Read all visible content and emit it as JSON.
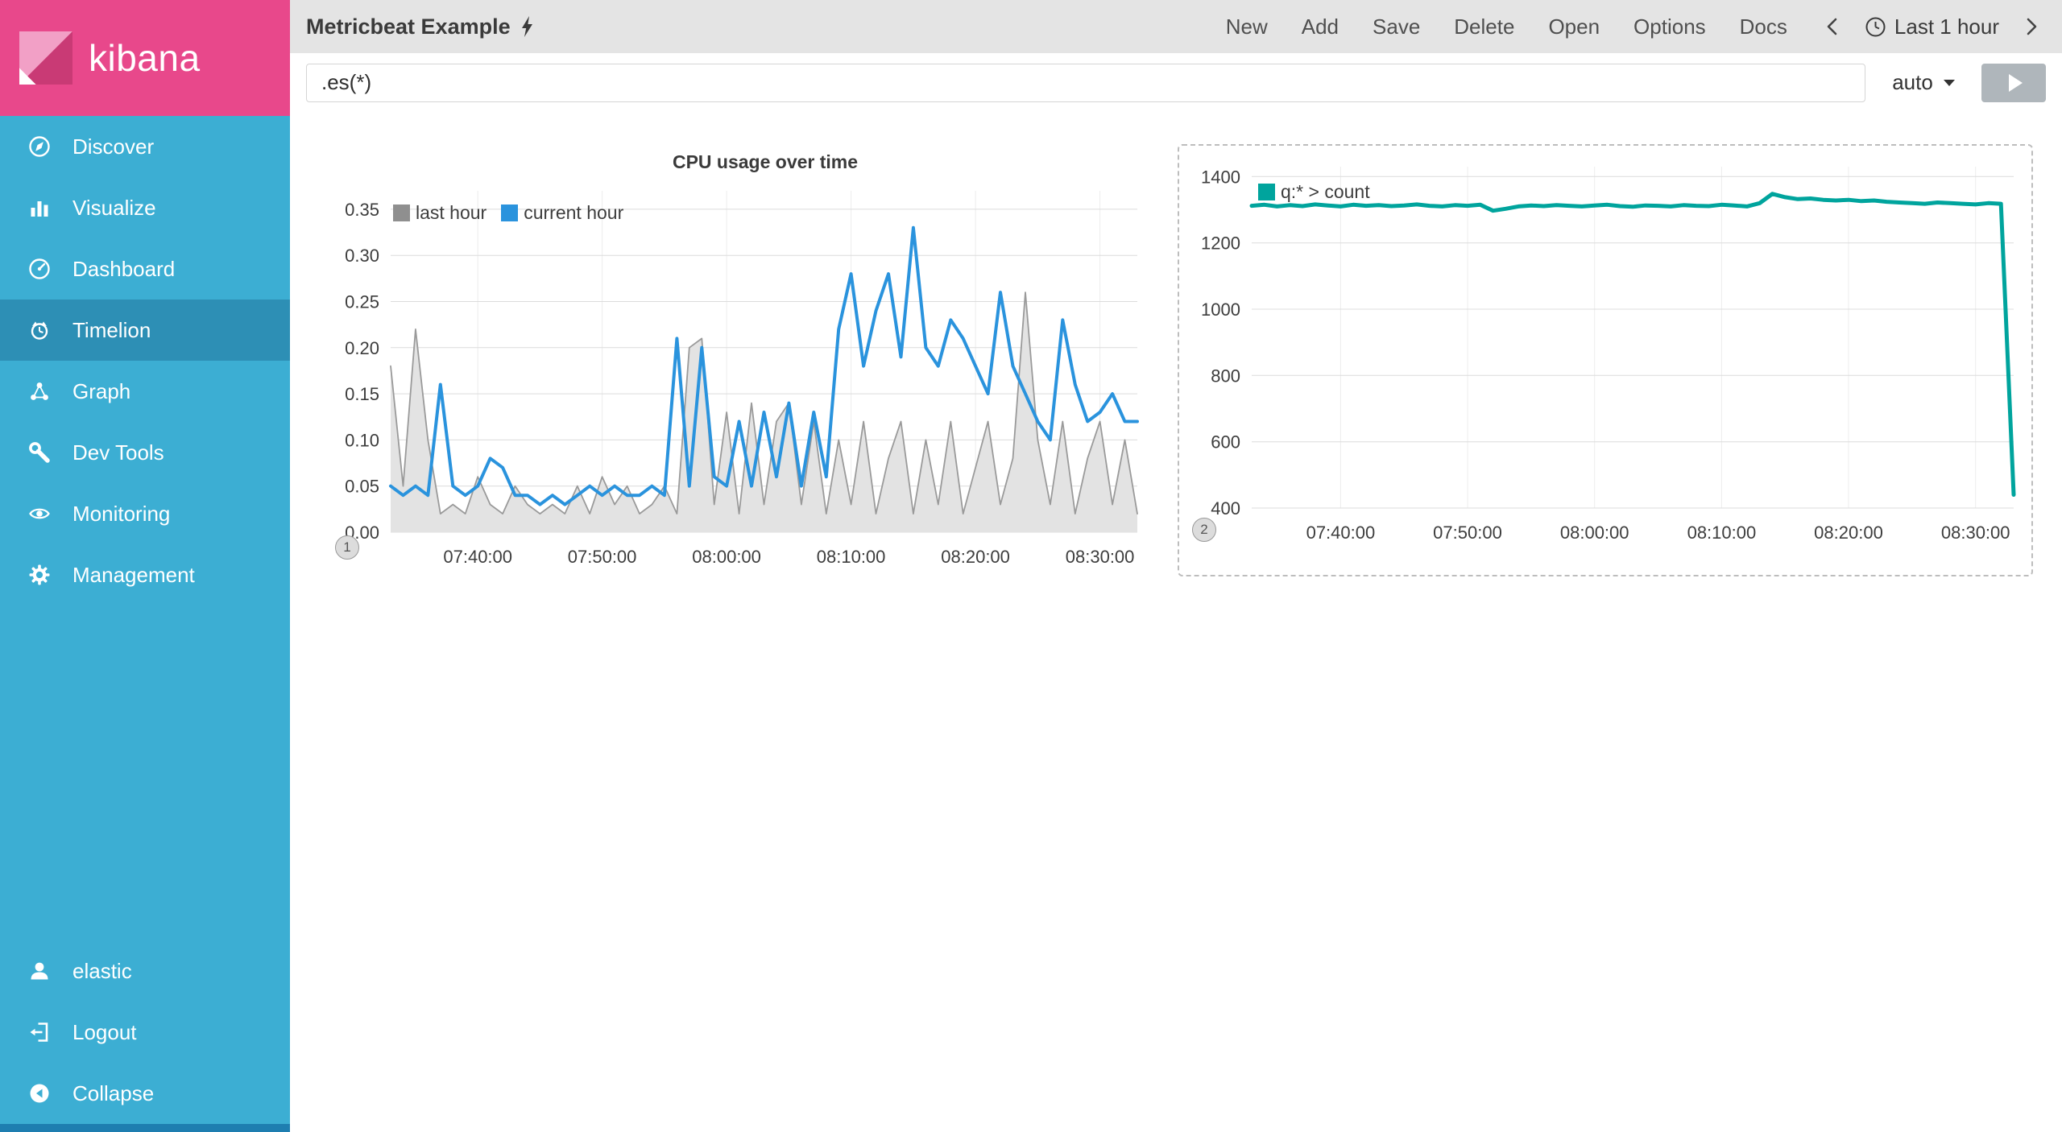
{
  "colors": {
    "sidebar": "#3CAED3",
    "sidebar_selected": "#2D8FB5",
    "logo_pink": "#E8488B",
    "topbar_bg": "#E4E4E4",
    "run_button": "#AFB6BB",
    "series_blue": "#2A93DD",
    "series_gray": "#8F8F8F",
    "series_teal": "#00A49D"
  },
  "sidebar": {
    "logo_text": "kibana",
    "items": [
      {
        "label": "Discover",
        "icon": "compass-icon",
        "selected": false
      },
      {
        "label": "Visualize",
        "icon": "bar-chart-icon",
        "selected": false
      },
      {
        "label": "Dashboard",
        "icon": "gauge-icon",
        "selected": false
      },
      {
        "label": "Timelion",
        "icon": "timelion-icon",
        "selected": true
      },
      {
        "label": "Graph",
        "icon": "graph-icon",
        "selected": false
      },
      {
        "label": "Dev Tools",
        "icon": "wrench-icon",
        "selected": false
      },
      {
        "label": "Monitoring",
        "icon": "eye-icon",
        "selected": false
      },
      {
        "label": "Management",
        "icon": "gear-icon",
        "selected": false
      }
    ],
    "bottom_items": [
      {
        "label": "elastic",
        "icon": "user-icon"
      },
      {
        "label": "Logout",
        "icon": "logout-icon"
      },
      {
        "label": "Collapse",
        "icon": "collapse-icon"
      }
    ]
  },
  "topbar": {
    "title": "Metricbeat Example",
    "menu": [
      "New",
      "Add",
      "Save",
      "Delete",
      "Open",
      "Options",
      "Docs"
    ],
    "timepicker": {
      "label": "Last 1 hour"
    }
  },
  "querybar": {
    "value": ".es(*)",
    "interval": "auto"
  },
  "chart_data": [
    {
      "type": "line",
      "title": "CPU usage over time",
      "panel_number": "1",
      "xlabel": "",
      "ylabel": "",
      "ylim": [
        0,
        0.37
      ],
      "grid": true,
      "legend_position": "top-left",
      "y_tick_values": [
        0,
        0.05,
        0.1,
        0.15,
        0.2,
        0.25,
        0.3,
        0.35
      ],
      "y_tick_labels": [
        "0.00",
        "0.05",
        "0.10",
        "0.15",
        "0.20",
        "0.25",
        "0.30",
        "0.35"
      ],
      "x_tick_indices": [
        7,
        17,
        27,
        37,
        47,
        57
      ],
      "x_tick_labels": [
        "07:40:00",
        "07:50:00",
        "08:00:00",
        "08:10:00",
        "08:20:00",
        "08:30:00"
      ],
      "x_range": [
        "07:33:00",
        "08:33:00"
      ],
      "series": [
        {
          "name": "last hour",
          "render": "area",
          "color": "#9A9A9A",
          "legend_color": "#8F8F8F",
          "fill": "#E3E3E3",
          "stroke_width": 1.8,
          "values": [
            0.18,
            0.05,
            0.22,
            0.1,
            0.02,
            0.03,
            0.02,
            0.06,
            0.03,
            0.02,
            0.05,
            0.03,
            0.02,
            0.03,
            0.02,
            0.05,
            0.02,
            0.06,
            0.03,
            0.05,
            0.02,
            0.03,
            0.05,
            0.02,
            0.2,
            0.21,
            0.03,
            0.13,
            0.02,
            0.14,
            0.03,
            0.12,
            0.14,
            0.03,
            0.12,
            0.02,
            0.1,
            0.03,
            0.12,
            0.02,
            0.08,
            0.12,
            0.02,
            0.1,
            0.03,
            0.12,
            0.02,
            0.07,
            0.12,
            0.03,
            0.08,
            0.26,
            0.1,
            0.03,
            0.12,
            0.02,
            0.08,
            0.12,
            0.03,
            0.1,
            0.02
          ]
        },
        {
          "name": "current hour",
          "render": "line",
          "color": "#2A93DD",
          "legend_color": "#2A93DD",
          "stroke_width": 4,
          "values": [
            0.05,
            0.04,
            0.05,
            0.04,
            0.16,
            0.05,
            0.04,
            0.05,
            0.08,
            0.07,
            0.04,
            0.04,
            0.03,
            0.04,
            0.03,
            0.04,
            0.05,
            0.04,
            0.05,
            0.04,
            0.04,
            0.05,
            0.04,
            0.21,
            0.05,
            0.2,
            0.06,
            0.05,
            0.12,
            0.05,
            0.13,
            0.06,
            0.14,
            0.05,
            0.13,
            0.06,
            0.22,
            0.28,
            0.18,
            0.24,
            0.28,
            0.19,
            0.33,
            0.2,
            0.18,
            0.23,
            0.21,
            0.18,
            0.15,
            0.26,
            0.18,
            0.15,
            0.12,
            0.1,
            0.23,
            0.16,
            0.12,
            0.13,
            0.15,
            0.12,
            0.12
          ]
        }
      ]
    },
    {
      "type": "line",
      "title": "",
      "panel_number": "2",
      "selected": true,
      "xlabel": "",
      "ylabel": "",
      "ylim": [
        400,
        1430
      ],
      "grid": true,
      "legend_position": "top-left",
      "y_tick_values": [
        400,
        600,
        800,
        1000,
        1200,
        1400
      ],
      "y_tick_labels": [
        "400",
        "600",
        "800",
        "1000",
        "1200",
        "1400"
      ],
      "x_tick_indices": [
        7,
        17,
        27,
        37,
        47,
        57
      ],
      "x_tick_labels": [
        "07:40:00",
        "07:50:00",
        "08:00:00",
        "08:10:00",
        "08:20:00",
        "08:30:00"
      ],
      "x_range": [
        "07:33:00",
        "08:33:00"
      ],
      "series": [
        {
          "name": "q:* > count",
          "render": "line",
          "color": "#00A49D",
          "legend_color": "#00A49D",
          "stroke_width": 5,
          "values": [
            1312,
            1315,
            1310,
            1314,
            1311,
            1316,
            1313,
            1310,
            1315,
            1312,
            1314,
            1311,
            1313,
            1316,
            1312,
            1310,
            1314,
            1312,
            1315,
            1297,
            1303,
            1310,
            1313,
            1311,
            1314,
            1312,
            1310,
            1313,
            1315,
            1311,
            1309,
            1313,
            1312,
            1310,
            1314,
            1312,
            1311,
            1315,
            1313,
            1310,
            1320,
            1348,
            1338,
            1332,
            1334,
            1330,
            1328,
            1330,
            1326,
            1328,
            1324,
            1322,
            1320,
            1318,
            1322,
            1320,
            1318,
            1316,
            1320,
            1318,
            440
          ]
        }
      ]
    }
  ]
}
